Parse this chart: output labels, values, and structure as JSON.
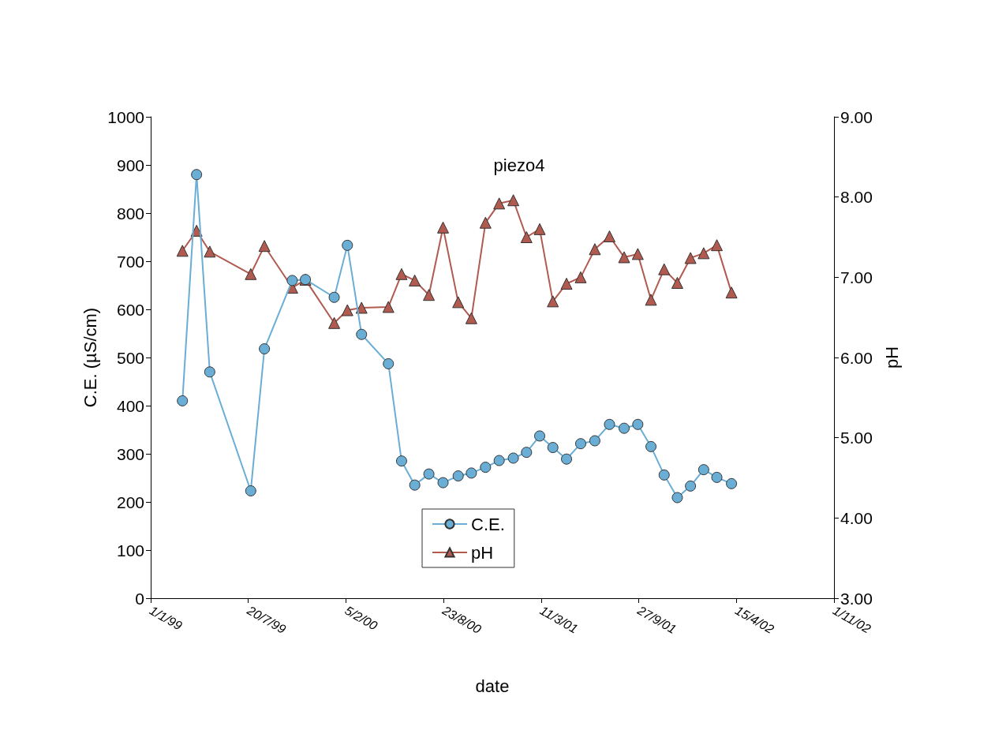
{
  "chart_data": {
    "type": "line",
    "title": "piezo4",
    "xlabel": "date",
    "ylabel": "C.E. (µS/cm)",
    "y2label": "pH",
    "x": [
      "1999-03-07",
      "1999-04-05",
      "1999-05-02",
      "1999-07-25",
      "1999-08-22",
      "1999-10-18",
      "1999-11-14",
      "2000-01-12",
      "2000-02-08",
      "2000-03-08",
      "2000-05-02",
      "2000-05-29",
      "2000-06-25",
      "2000-07-24",
      "2000-08-22",
      "2000-09-22",
      "2000-10-19",
      "2000-11-17",
      "2000-12-15",
      "2001-01-13",
      "2001-02-09",
      "2001-03-08",
      "2001-04-04",
      "2001-05-02",
      "2001-05-31",
      "2001-06-29",
      "2001-07-29",
      "2001-08-28",
      "2001-09-25",
      "2001-10-22",
      "2001-11-18",
      "2001-12-15",
      "2002-01-11",
      "2002-02-07",
      "2002-03-06",
      "2002-04-05"
    ],
    "series": [
      {
        "name": "C.E.",
        "color": "#6aaed6",
        "marker": "circle",
        "values": [
          410,
          880,
          470,
          223,
          518,
          660,
          662,
          625,
          733,
          548,
          487,
          285,
          235,
          258,
          240,
          254,
          260,
          272,
          286,
          291,
          303,
          337,
          313,
          289,
          321,
          327,
          361,
          353,
          361,
          315,
          256,
          209,
          233,
          267,
          251,
          238
        ]
      },
      {
        "name": "pH",
        "color": "#b05a50",
        "marker": "triangle",
        "axis": "y2",
        "values": [
          7.33,
          7.58,
          7.32,
          7.04,
          7.39,
          6.87,
          6.97,
          6.43,
          6.59,
          6.62,
          6.63,
          7.04,
          6.96,
          6.78,
          7.62,
          6.69,
          6.49,
          7.68,
          7.92,
          7.96,
          7.5,
          7.6,
          6.7,
          6.92,
          7.0,
          7.35,
          7.51,
          7.25,
          7.29,
          6.72,
          7.1,
          6.93,
          7.24,
          7.3,
          7.4,
          6.81
        ]
      }
    ],
    "xlim": [
      "1999-01-01",
      "2002-11-01"
    ],
    "xticks": [
      {
        "value": "1999-01-01",
        "label": "1/1/99"
      },
      {
        "value": "1999-07-20",
        "label": "20/7/99"
      },
      {
        "value": "2000-02-05",
        "label": "5/2/00"
      },
      {
        "value": "2000-08-23",
        "label": "23/8/00"
      },
      {
        "value": "2001-03-11",
        "label": "11/3/01"
      },
      {
        "value": "2001-09-27",
        "label": "27/9/01"
      },
      {
        "value": "2002-04-15",
        "label": "15/4/02"
      },
      {
        "value": "2002-11-01",
        "label": "1/11/02"
      }
    ],
    "ylim": [
      0,
      1000
    ],
    "yticks": [
      0,
      100,
      200,
      300,
      400,
      500,
      600,
      700,
      800,
      900,
      1000
    ],
    "y2lim": [
      3,
      9
    ],
    "y2ticks": [
      {
        "value": 3,
        "label": "3.00"
      },
      {
        "value": 4,
        "label": "4.00"
      },
      {
        "value": 5,
        "label": "5.00"
      },
      {
        "value": 6,
        "label": "6.00"
      },
      {
        "value": 7,
        "label": "7.00"
      },
      {
        "value": 8,
        "label": "8.00"
      },
      {
        "value": 9,
        "label": "9.00"
      }
    ],
    "grid": false,
    "legend": "bottom"
  }
}
